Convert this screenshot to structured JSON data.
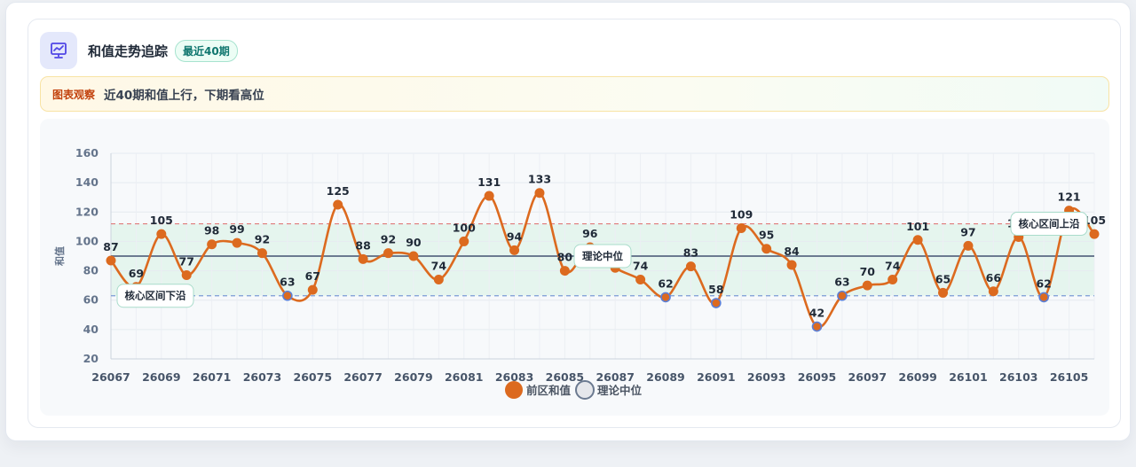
{
  "header": {
    "title": "和值走势追踪",
    "badge": "最近40期"
  },
  "notice": {
    "tag": "图表观察",
    "text": "近40期和值上行，下期看高位"
  },
  "colors": {
    "series": "#dc6a1f",
    "median": "#6b7a90",
    "upper_band": "#e07a7a",
    "lower_band": "#7b9ad6",
    "band_fill": "#d8f1e6"
  },
  "chart_data": {
    "type": "line",
    "ylabel": "和值",
    "ylim": [
      20,
      160
    ],
    "yticks": [
      20,
      40,
      60,
      80,
      100,
      120,
      140,
      160
    ],
    "xlabels": [
      "26067",
      "26069",
      "26071",
      "26073",
      "26075",
      "26077",
      "26079",
      "26081",
      "26083",
      "26085",
      "26087",
      "26089",
      "26091",
      "26093",
      "26095",
      "26097",
      "26099",
      "26101",
      "26103",
      "26105"
    ],
    "x": [
      26067,
      26068,
      26069,
      26070,
      26071,
      26072,
      26073,
      26074,
      26075,
      26076,
      26077,
      26078,
      26079,
      26080,
      26081,
      26082,
      26083,
      26084,
      26085,
      26086,
      26087,
      26088,
      26089,
      26090,
      26091,
      26092,
      26093,
      26094,
      26095,
      26096,
      26097,
      26098,
      26099,
      26100,
      26101,
      26102,
      26103,
      26104,
      26105,
      26106
    ],
    "series": [
      {
        "name": "前区和值",
        "values": [
          87,
          69,
          105,
          77,
          98,
          99,
          92,
          63,
          67,
          125,
          88,
          92,
          90,
          74,
          100,
          131,
          94,
          133,
          80,
          96,
          82,
          74,
          62,
          83,
          58,
          109,
          95,
          84,
          42,
          63,
          70,
          74,
          101,
          65,
          97,
          66,
          103,
          62,
          121,
          105
        ]
      }
    ],
    "reference": {
      "median": {
        "name": "理论中位",
        "value": 90,
        "label": "理论中位"
      },
      "upper": {
        "value": 112,
        "label": "核心区间上沿"
      },
      "lower": {
        "value": 63,
        "label": "核心区间下沿"
      }
    },
    "legend": [
      "前区和值",
      "理论中位"
    ],
    "legend_position": "bottom",
    "grid": true
  }
}
